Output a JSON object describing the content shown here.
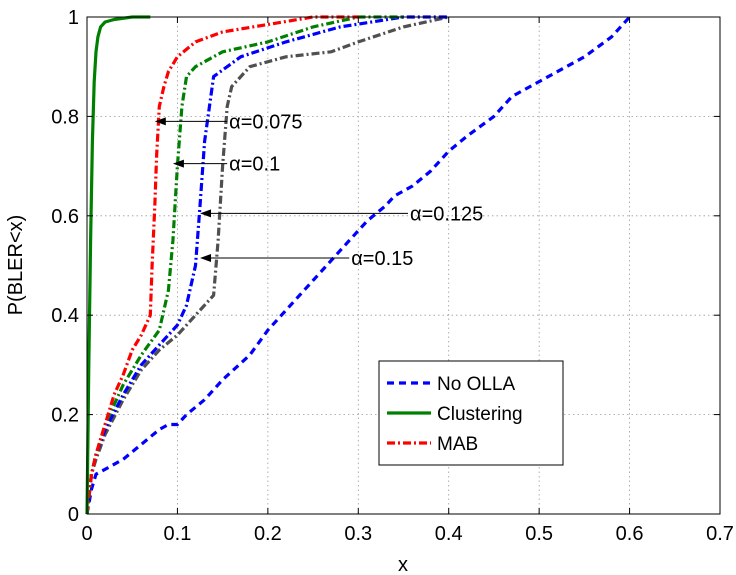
{
  "chart_data": {
    "type": "line",
    "title": "",
    "xlabel": "x",
    "ylabel": "P(BLER<x)",
    "xlim": [
      0,
      0.7
    ],
    "ylim": [
      0,
      1
    ],
    "xticks": [
      0,
      0.1,
      0.2,
      0.3,
      0.4,
      0.5,
      0.6,
      0.7
    ],
    "yticks": [
      0,
      0.2,
      0.4,
      0.6,
      0.8,
      1
    ],
    "xtick_labels": [
      "0",
      "0.1",
      "0.2",
      "0.3",
      "0.4",
      "0.5",
      "0.6",
      "0.7"
    ],
    "ytick_labels": [
      "0",
      "0.2",
      "0.4",
      "0.6",
      "0.8",
      "1"
    ],
    "grid": true,
    "legend_position": "bottom-right",
    "series": [
      {
        "name": "No OLLA",
        "color": "#0000ff",
        "style": "dashed",
        "in_legend": true,
        "x": [
          0,
          0.005,
          0.01,
          0.02,
          0.04,
          0.06,
          0.08,
          0.09,
          0.1,
          0.11,
          0.13,
          0.15,
          0.18,
          0.2,
          0.23,
          0.26,
          0.29,
          0.31,
          0.33,
          0.34,
          0.36,
          0.38,
          0.4,
          0.42,
          0.45,
          0.47,
          0.5,
          0.52,
          0.55,
          0.58,
          0.6
        ],
        "y": [
          0,
          0.05,
          0.08,
          0.09,
          0.11,
          0.14,
          0.17,
          0.18,
          0.18,
          0.2,
          0.23,
          0.27,
          0.32,
          0.37,
          0.43,
          0.49,
          0.55,
          0.59,
          0.62,
          0.64,
          0.66,
          0.69,
          0.73,
          0.76,
          0.8,
          0.84,
          0.87,
          0.89,
          0.92,
          0.96,
          1.0
        ]
      },
      {
        "name": "Clustering",
        "color": "#008000",
        "style": "solid",
        "in_legend": true,
        "x": [
          0,
          0.002,
          0.004,
          0.006,
          0.008,
          0.01,
          0.012,
          0.015,
          0.02,
          0.03,
          0.05,
          0.07
        ],
        "y": [
          0,
          0.3,
          0.55,
          0.75,
          0.87,
          0.93,
          0.96,
          0.98,
          0.99,
          0.995,
          1.0,
          1.0
        ]
      },
      {
        "name": "MAB",
        "color": "#ff0000",
        "style": "dashdot",
        "in_legend": true,
        "x": [
          0,
          0.005,
          0.01,
          0.02,
          0.03,
          0.04,
          0.05,
          0.06,
          0.07,
          0.072,
          0.075,
          0.077,
          0.08,
          0.085,
          0.09,
          0.1,
          0.12,
          0.15,
          0.2,
          0.25,
          0.3
        ],
        "y": [
          0,
          0.08,
          0.12,
          0.18,
          0.24,
          0.28,
          0.33,
          0.36,
          0.4,
          0.5,
          0.62,
          0.72,
          0.82,
          0.86,
          0.89,
          0.92,
          0.95,
          0.97,
          0.985,
          1.0,
          1.0
        ]
      },
      {
        "name": "",
        "color": "#008000",
        "style": "dashdot",
        "in_legend": false,
        "x": [
          0,
          0.005,
          0.01,
          0.02,
          0.04,
          0.06,
          0.08,
          0.09,
          0.095,
          0.1,
          0.105,
          0.11,
          0.12,
          0.15,
          0.2,
          0.25,
          0.3,
          0.35
        ],
        "y": [
          0,
          0.08,
          0.12,
          0.18,
          0.26,
          0.32,
          0.37,
          0.45,
          0.55,
          0.7,
          0.82,
          0.88,
          0.9,
          0.93,
          0.95,
          0.98,
          1.0,
          1.0
        ]
      },
      {
        "name": "",
        "color": "#0000ff",
        "style": "dashdot",
        "in_legend": false,
        "x": [
          0,
          0.005,
          0.01,
          0.02,
          0.04,
          0.06,
          0.08,
          0.1,
          0.11,
          0.12,
          0.125,
          0.13,
          0.14,
          0.17,
          0.22,
          0.28,
          0.35,
          0.4
        ],
        "y": [
          0,
          0.08,
          0.12,
          0.17,
          0.24,
          0.3,
          0.34,
          0.38,
          0.42,
          0.5,
          0.62,
          0.75,
          0.88,
          0.92,
          0.95,
          0.98,
          1.0,
          1.0
        ]
      },
      {
        "name": "",
        "color": "#505050",
        "style": "dashdot",
        "in_legend": false,
        "x": [
          0,
          0.005,
          0.01,
          0.02,
          0.04,
          0.06,
          0.08,
          0.1,
          0.12,
          0.14,
          0.145,
          0.15,
          0.155,
          0.16,
          0.18,
          0.22,
          0.27,
          0.3,
          0.35,
          0.4
        ],
        "y": [
          0,
          0.08,
          0.11,
          0.16,
          0.23,
          0.29,
          0.33,
          0.36,
          0.4,
          0.44,
          0.55,
          0.7,
          0.82,
          0.86,
          0.9,
          0.92,
          0.93,
          0.95,
          0.98,
          1.0
        ]
      }
    ],
    "annotations": [
      {
        "text": "α=0.075",
        "text_x": 0.155,
        "text_y": 0.79,
        "arrow_to_x": 0.075,
        "arrow_to_y": 0.79
      },
      {
        "text": "α=0.1",
        "text_x": 0.155,
        "text_y": 0.705,
        "arrow_to_x": 0.095,
        "arrow_to_y": 0.705
      },
      {
        "text": "α=0.125",
        "text_x": 0.355,
        "text_y": 0.605,
        "arrow_to_x": 0.125,
        "arrow_to_y": 0.605
      },
      {
        "text": "α=0.15",
        "text_x": 0.29,
        "text_y": 0.515,
        "arrow_to_x": 0.125,
        "arrow_to_y": 0.515
      }
    ]
  }
}
